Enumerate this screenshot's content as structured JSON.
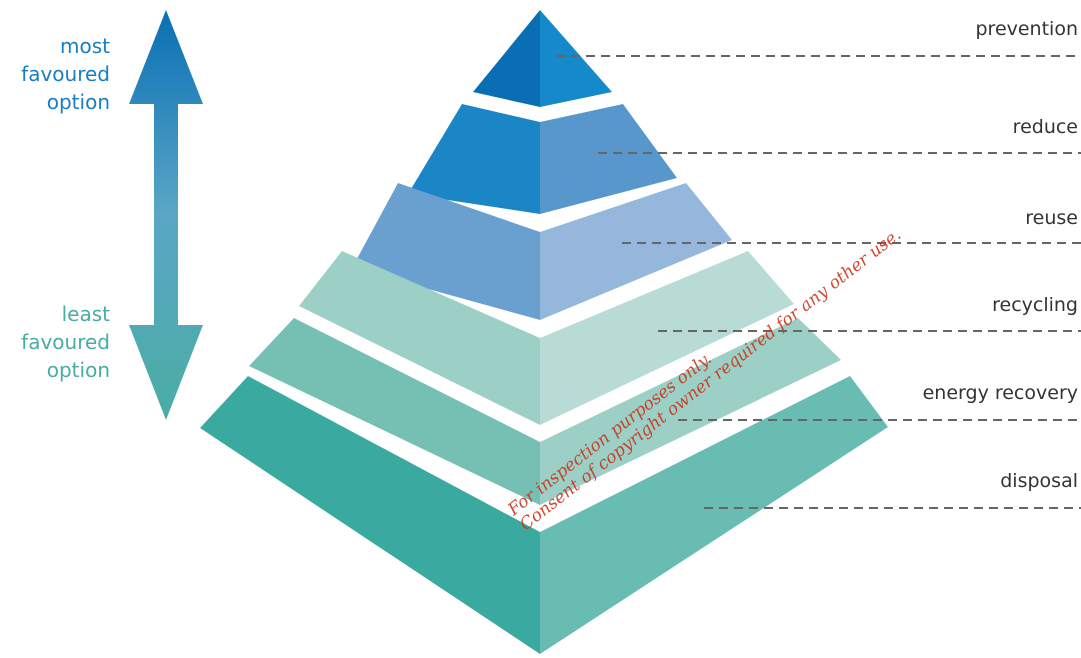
{
  "arrow": {
    "top_label": [
      "most",
      "favoured",
      "option"
    ],
    "bottom_label": [
      "least",
      "favoured",
      "option"
    ],
    "top_color": "#1a7fbf",
    "bottom_color": "#4aada4"
  },
  "levels": [
    {
      "label": "prevention",
      "left_color": "#0a6eb4",
      "right_color": "#1589c9"
    },
    {
      "label": "reduce",
      "left_color": "#1a86c6",
      "right_color": "#5897cc"
    },
    {
      "label": "reuse",
      "left_color": "#6aa0d0",
      "right_color": "#96b7dc"
    },
    {
      "label": "recycling",
      "left_color": "#9ccfc6",
      "right_color": "#b8dcd5"
    },
    {
      "label": "energy recovery",
      "left_color": "#76bfb3",
      "right_color": "#9ccfc6"
    },
    {
      "label": "disposal",
      "left_color": "#3aaaa0",
      "right_color": "#68bcb2"
    }
  ],
  "watermark": [
    "For inspection purposes only.",
    "Consent of copyright owner required for any other use."
  ]
}
